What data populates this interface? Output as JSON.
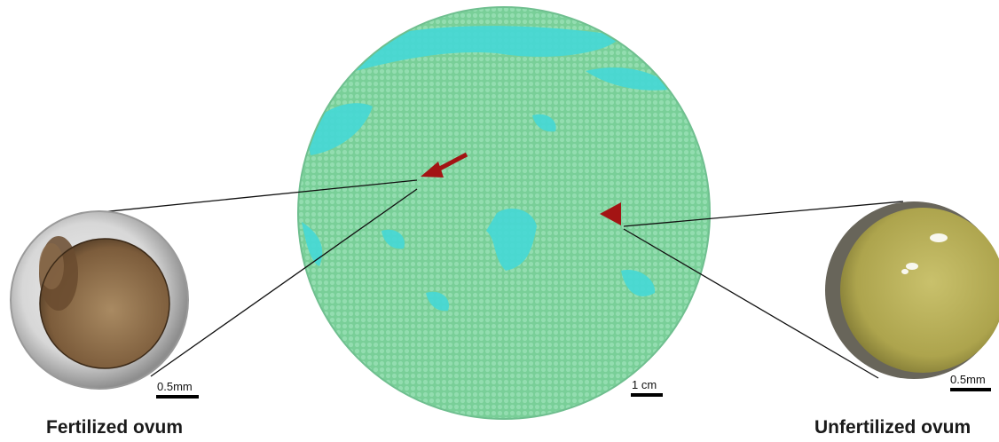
{
  "labels": {
    "fertilized": "Fertilized ovum",
    "unfertilized": "Unfertilized ovum"
  },
  "scale_bars": {
    "left": "0.5mm",
    "center": "1 cm",
    "right": "0.5mm"
  },
  "colors": {
    "dish_green": "#7fd3a0",
    "dish_cyan": "#3fd6d8",
    "marker_red": "#a31414",
    "fertilized_inner": "#8c6b45",
    "fertilized_shell": "#cfcfcf",
    "unfertilized_inner": "#b8b05a",
    "unfertilized_rim": "#6e6a5a"
  },
  "icons": {
    "arrow": "red-arrow-icon",
    "triangle": "red-triangle-icon"
  }
}
